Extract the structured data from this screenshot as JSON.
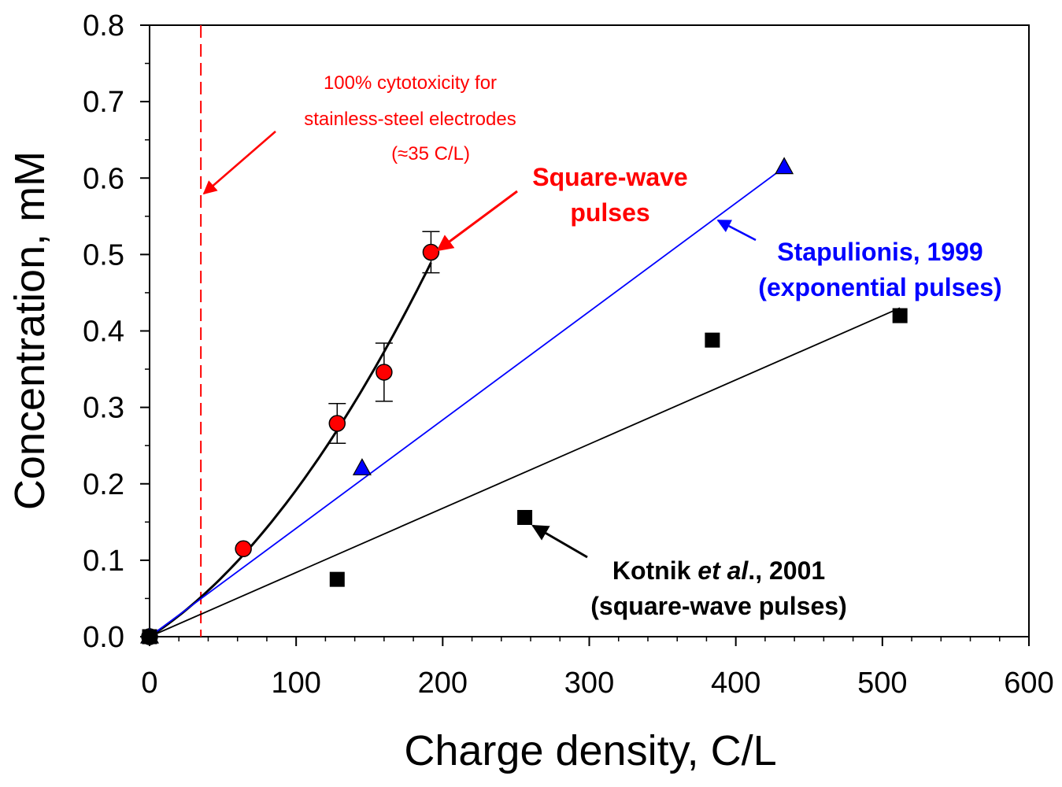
{
  "chart_data": {
    "type": "scatter",
    "xlabel": "Charge density, C/L",
    "ylabel": "Concentration, mM",
    "xlim": [
      0,
      600
    ],
    "ylim": [
      0,
      0.8
    ],
    "x_ticks": [
      "0",
      "100",
      "200",
      "300",
      "400",
      "500",
      "600"
    ],
    "y_ticks": [
      "0.0",
      "0.1",
      "0.2",
      "0.3",
      "0.4",
      "0.5",
      "0.6",
      "0.7",
      "0.8"
    ],
    "grid": false,
    "series": [
      {
        "key": "square_wave",
        "marker": "circle",
        "color": "#ff0000",
        "fit": "curve",
        "fit_color": "#000000",
        "points": [
          {
            "x": 0,
            "y": 0.0
          },
          {
            "x": 64,
            "y": 0.115
          },
          {
            "x": 128,
            "y": 0.279,
            "err": 0.026
          },
          {
            "x": 160,
            "y": 0.346,
            "err": 0.038
          },
          {
            "x": 192,
            "y": 0.503,
            "err": 0.027
          }
        ]
      },
      {
        "key": "stapulionis",
        "marker": "triangle",
        "color": "#0000ff",
        "fit": "line",
        "fit_color": "#0000ff",
        "fit_x": [
          0,
          433
        ],
        "fit_y": [
          0.0,
          0.614
        ],
        "points": [
          {
            "x": 0,
            "y": 0.0
          },
          {
            "x": 145,
            "y": 0.22
          },
          {
            "x": 433,
            "y": 0.614
          }
        ]
      },
      {
        "key": "kotnik",
        "marker": "square",
        "color": "#000000",
        "fit": "line",
        "fit_color": "#000000",
        "fit_x": [
          0,
          512
        ],
        "fit_y": [
          0.0,
          0.43
        ],
        "points": [
          {
            "x": 0,
            "y": 0.0
          },
          {
            "x": 128,
            "y": 0.075
          },
          {
            "x": 256,
            "y": 0.156
          },
          {
            "x": 384,
            "y": 0.388
          },
          {
            "x": 512,
            "y": 0.42
          }
        ]
      }
    ],
    "reference_line": {
      "x": 35,
      "color": "#ff0000",
      "style": "dashed"
    },
    "annotations": {
      "cytotoxicity": {
        "line1": "100% cytotoxicity for",
        "line2": "stainless-steel electrodes",
        "line3": "(≈35 C/L)",
        "color": "#ff0000"
      },
      "square_wave": {
        "line1": "Square-wave",
        "line2": "pulses",
        "color": "#ff0000"
      },
      "stapulionis": {
        "line1": "Stapulionis, 1999",
        "line2": "(exponential pulses)",
        "color": "#0000ff"
      },
      "kotnik": {
        "line1_a": "Kotnik ",
        "line1_b": "et al",
        "line1_c": "., 2001",
        "line2": "(square-wave pulses)",
        "color": "#000000"
      }
    }
  }
}
